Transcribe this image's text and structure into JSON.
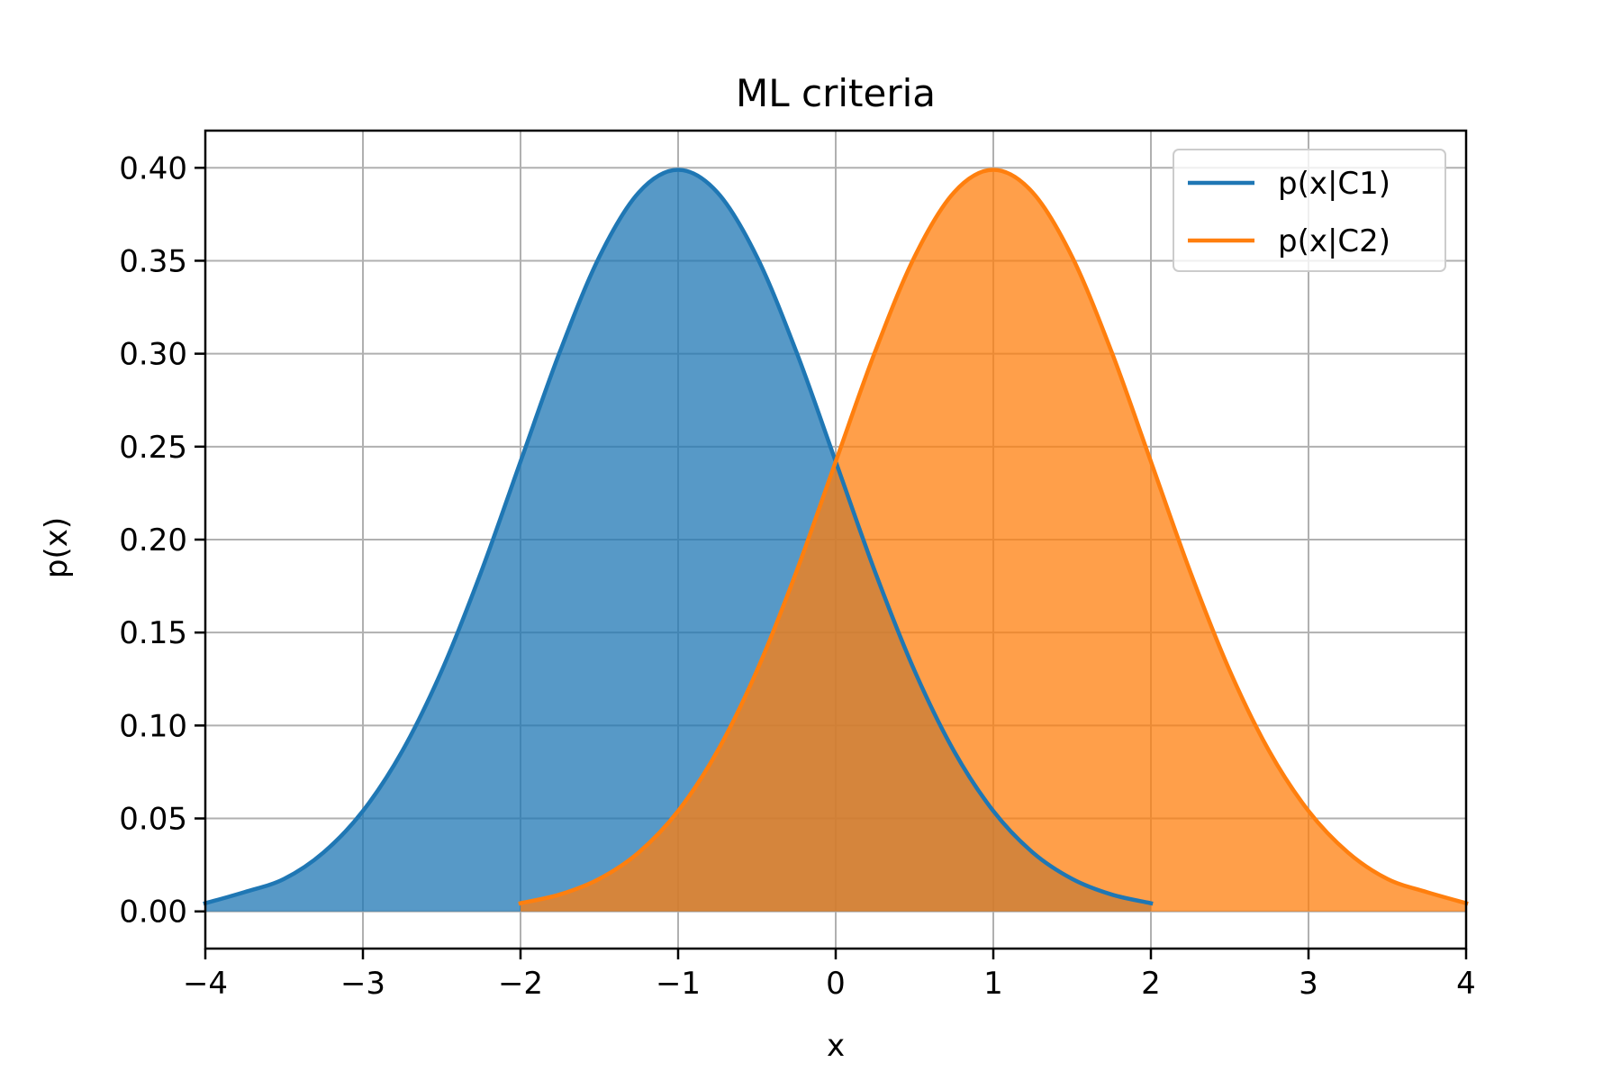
{
  "chart_data": {
    "type": "area",
    "title": "ML criteria",
    "xlabel": "x",
    "ylabel": "p(x)",
    "xlim": [
      -4,
      4
    ],
    "ylim": [
      -0.02,
      0.42
    ],
    "grid": true,
    "legend_position": "top-right",
    "x_ticks": [
      -4,
      -3,
      -2,
      -1,
      0,
      1,
      2,
      3,
      4
    ],
    "x_tick_labels": [
      "−4",
      "−3",
      "−2",
      "−1",
      "0",
      "1",
      "2",
      "3",
      "4"
    ],
    "y_ticks": [
      0.0,
      0.05,
      0.1,
      0.15,
      0.2,
      0.25,
      0.3,
      0.35,
      0.4
    ],
    "y_tick_labels": [
      "0.00",
      "0.05",
      "0.10",
      "0.15",
      "0.20",
      "0.25",
      "0.30",
      "0.35",
      "0.40"
    ],
    "series": [
      {
        "name": "p(x|C1)",
        "color": "#1f77b4",
        "fill_color": "#1f77b4",
        "x": [
          -4.0,
          -3.75,
          -3.5,
          -3.25,
          -3.0,
          -2.75,
          -2.5,
          -2.25,
          -2.0,
          -1.75,
          -1.5,
          -1.25,
          -1.0,
          -0.75,
          -0.5,
          -0.25,
          0.0,
          0.25,
          0.5,
          0.75,
          1.0,
          1.25,
          1.5,
          1.75,
          2.0
        ],
        "y": [
          0.0044,
          0.0104,
          0.0175,
          0.0317,
          0.054,
          0.0863,
          0.1295,
          0.1826,
          0.242,
          0.3011,
          0.3521,
          0.3867,
          0.3989,
          0.3867,
          0.3521,
          0.3011,
          0.242,
          0.1826,
          0.1295,
          0.0863,
          0.054,
          0.0317,
          0.0175,
          0.0091,
          0.0044
        ]
      },
      {
        "name": "p(x|C2)",
        "color": "#ff7f0e",
        "fill_color": "#ff7f0e",
        "x": [
          -2.0,
          -1.75,
          -1.5,
          -1.25,
          -1.0,
          -0.75,
          -0.5,
          -0.25,
          0.0,
          0.25,
          0.5,
          0.75,
          1.0,
          1.25,
          1.5,
          1.75,
          2.0,
          2.25,
          2.5,
          2.75,
          3.0,
          3.25,
          3.5,
          3.75,
          4.0
        ],
        "y": [
          0.0044,
          0.0091,
          0.0175,
          0.0317,
          0.054,
          0.0863,
          0.1295,
          0.1826,
          0.242,
          0.3011,
          0.3521,
          0.3867,
          0.3989,
          0.3867,
          0.3521,
          0.3011,
          0.242,
          0.1826,
          0.1295,
          0.0863,
          0.054,
          0.0317,
          0.0175,
          0.0104,
          0.0044
        ]
      }
    ]
  }
}
